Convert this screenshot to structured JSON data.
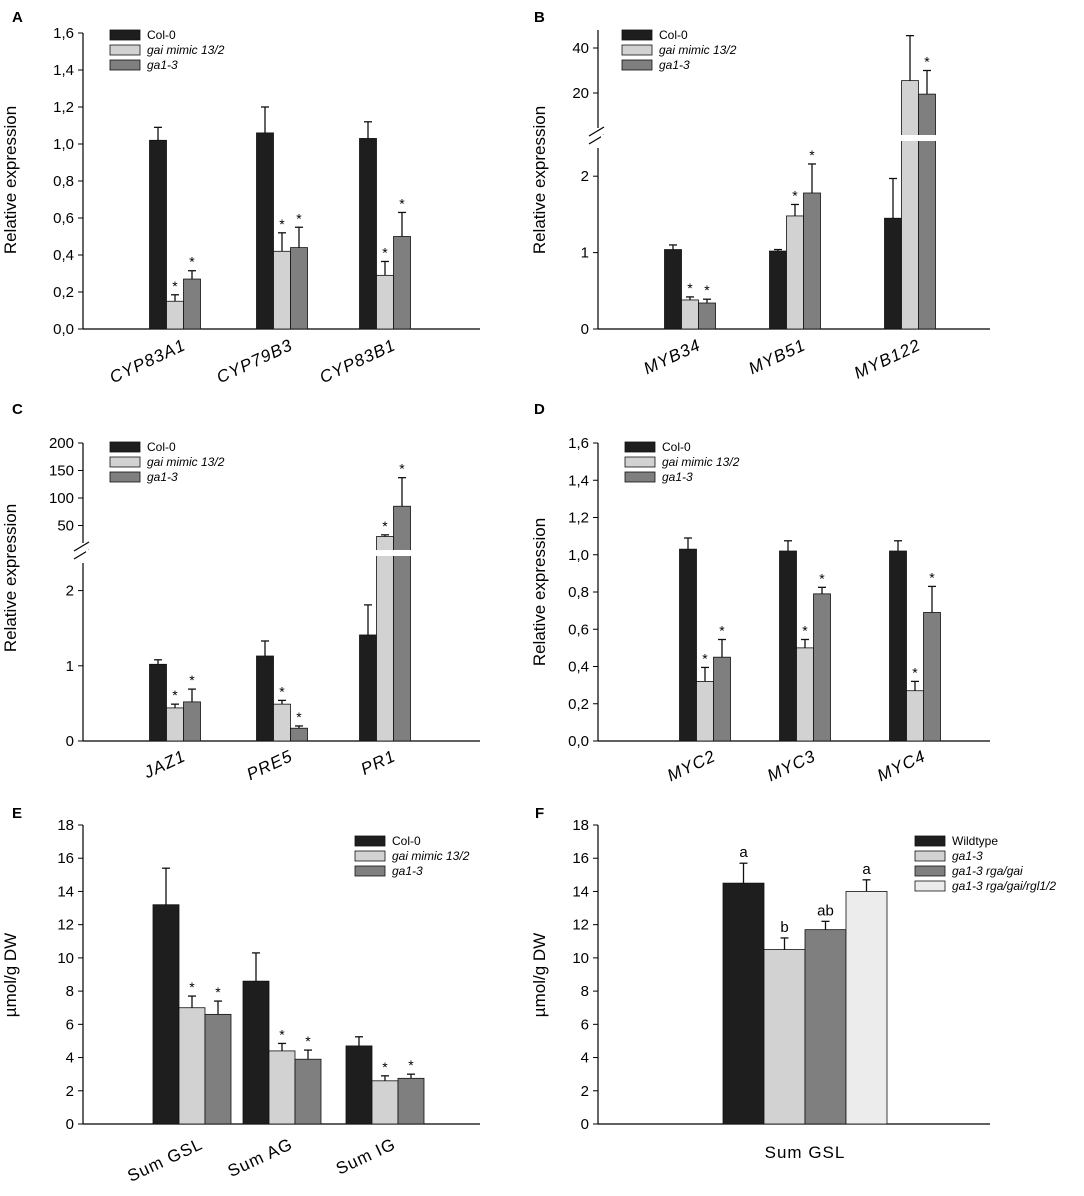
{
  "colors": {
    "col0": "#1e1e1e",
    "mimic": "#d2d2d2",
    "ga13": "#7f7f7f",
    "quad": "#ececec"
  },
  "chart_data": [
    {
      "id": "A",
      "panel_label": "A",
      "type": "bar",
      "ylabel": "Relative expression",
      "ylim": [
        0,
        1.6
      ],
      "yticks": [
        "0,0",
        "0,2",
        "0,4",
        "0,6",
        "0,8",
        "1,0",
        "1,2",
        "1,4",
        "1,6"
      ],
      "categories": [
        "CYP83A1",
        "CYP79B3",
        "CYP83B1"
      ],
      "category_italic": true,
      "category_rotated": true,
      "legend": {
        "position": "top-left",
        "entries": [
          "Col-0",
          "gai mimic 13/2",
          "ga1-3"
        ]
      },
      "series": [
        {
          "name": "Col-0",
          "color_key": "col0",
          "values": [
            1.02,
            1.06,
            1.03
          ],
          "errors": [
            0.07,
            0.14,
            0.09
          ],
          "marks": [
            "",
            "",
            ""
          ]
        },
        {
          "name": "gai mimic 13/2",
          "color_key": "mimic",
          "values": [
            0.15,
            0.42,
            0.29
          ],
          "errors": [
            0.035,
            0.1,
            0.075
          ],
          "marks": [
            "*",
            "*",
            "*"
          ]
        },
        {
          "name": "ga1-3",
          "color_key": "ga13",
          "values": [
            0.27,
            0.44,
            0.5
          ],
          "errors": [
            0.045,
            0.11,
            0.13
          ],
          "marks": [
            "*",
            "*",
            "*"
          ]
        }
      ]
    },
    {
      "id": "B",
      "panel_label": "B",
      "type": "bar",
      "ylabel": "Relative expression",
      "broken_axis": true,
      "ylim_lower": [
        0,
        2.5
      ],
      "ylim_upper": [
        0,
        48
      ],
      "yticks_lower": [
        "0",
        "1",
        "2"
      ],
      "yticks_upper": [
        "20",
        "40"
      ],
      "categories": [
        "MYB34",
        "MYB51",
        "MYB122"
      ],
      "category_italic": true,
      "category_rotated": true,
      "legend": {
        "position": "top-left",
        "entries": [
          "Col-0",
          "gai mimic 13/2",
          "ga1-3"
        ]
      },
      "series": [
        {
          "name": "Col-0",
          "color_key": "col0",
          "values": [
            1.04,
            1.02,
            1.45
          ],
          "errors": [
            0.06,
            0.02,
            0.52
          ],
          "marks": [
            "",
            "",
            ""
          ]
        },
        {
          "name": "gai mimic 13/2",
          "color_key": "mimic",
          "values": [
            0.38,
            1.48,
            25.5
          ],
          "errors": [
            0.04,
            0.15,
            20.0
          ],
          "marks": [
            "*",
            "*",
            ""
          ]
        },
        {
          "name": "ga1-3",
          "color_key": "ga13",
          "values": [
            0.34,
            1.78,
            19.5
          ],
          "errors": [
            0.05,
            0.38,
            10.5
          ],
          "marks": [
            "*",
            "*",
            "*"
          ]
        }
      ]
    },
    {
      "id": "C",
      "panel_label": "C",
      "type": "bar",
      "ylabel": "Relative expression",
      "broken_axis": true,
      "ylim_lower": [
        0,
        2.5
      ],
      "ylim_upper": [
        0,
        200
      ],
      "yticks_lower": [
        "0",
        "1",
        "2"
      ],
      "yticks_upper": [
        "50",
        "100",
        "150",
        "200"
      ],
      "categories": [
        "JAZ1",
        "PRE5",
        "PR1"
      ],
      "category_italic": true,
      "category_rotated": true,
      "legend": {
        "position": "top-left",
        "entries": [
          "Col-0",
          "gai mimic 13/2",
          "ga1-3"
        ]
      },
      "series": [
        {
          "name": "Col-0",
          "color_key": "col0",
          "values": [
            1.02,
            1.13,
            1.41
          ],
          "errors": [
            0.06,
            0.2,
            0.4
          ],
          "marks": [
            "",
            "",
            ""
          ]
        },
        {
          "name": "gai mimic 13/2",
          "color_key": "mimic",
          "values": [
            0.44,
            0.49,
            30
          ],
          "errors": [
            0.05,
            0.05,
            3
          ],
          "marks": [
            "*",
            "*",
            "*"
          ]
        },
        {
          "name": "ga1-3",
          "color_key": "ga13",
          "values": [
            0.52,
            0.17,
            85
          ],
          "errors": [
            0.17,
            0.03,
            52
          ],
          "marks": [
            "*",
            "*",
            "*"
          ]
        }
      ]
    },
    {
      "id": "D",
      "panel_label": "D",
      "type": "bar",
      "ylabel": "Relative expression",
      "ylim": [
        0,
        1.6
      ],
      "yticks": [
        "0,0",
        "0,2",
        "0,4",
        "0,6",
        "0,8",
        "1,0",
        "1,2",
        "1,4",
        "1,6"
      ],
      "categories": [
        "MYC2",
        "MYC3",
        "MYC4"
      ],
      "category_italic": true,
      "category_rotated": true,
      "legend": {
        "position": "top-left",
        "entries": [
          "Col-0",
          "gai mimic 13/2",
          "ga1-3"
        ]
      },
      "series": [
        {
          "name": "Col-0",
          "color_key": "col0",
          "values": [
            1.03,
            1.02,
            1.02
          ],
          "errors": [
            0.06,
            0.055,
            0.055
          ],
          "marks": [
            "",
            "",
            ""
          ]
        },
        {
          "name": "gai mimic 13/2",
          "color_key": "mimic",
          "values": [
            0.32,
            0.5,
            0.27
          ],
          "errors": [
            0.075,
            0.045,
            0.05
          ],
          "marks": [
            "*",
            "*",
            "*"
          ]
        },
        {
          "name": "ga1-3",
          "color_key": "ga13",
          "values": [
            0.45,
            0.79,
            0.69
          ],
          "errors": [
            0.095,
            0.035,
            0.14
          ],
          "marks": [
            "*",
            "*",
            "*"
          ]
        }
      ]
    },
    {
      "id": "E",
      "panel_label": "E",
      "type": "bar",
      "ylabel": "µmol/g DW",
      "ylim": [
        0,
        18
      ],
      "yticks": [
        "0",
        "2",
        "4",
        "6",
        "8",
        "10",
        "12",
        "14",
        "16",
        "18"
      ],
      "categories": [
        "Sum GSL",
        "Sum AG",
        "Sum IG"
      ],
      "category_italic": false,
      "category_rotated": true,
      "legend": {
        "position": "top-right",
        "entries": [
          "Col-0",
          "gai mimic 13/2",
          "ga1-3"
        ]
      },
      "series": [
        {
          "name": "Col-0",
          "color_key": "col0",
          "values": [
            13.2,
            8.6,
            4.7
          ],
          "errors": [
            2.2,
            1.7,
            0.55
          ],
          "marks": [
            "",
            "",
            ""
          ]
        },
        {
          "name": "gai mimic 13/2",
          "color_key": "mimic",
          "values": [
            7.0,
            4.4,
            2.6
          ],
          "errors": [
            0.7,
            0.45,
            0.3
          ],
          "marks": [
            "*",
            "*",
            "*"
          ]
        },
        {
          "name": "ga1-3",
          "color_key": "ga13",
          "values": [
            6.6,
            3.9,
            2.75
          ],
          "errors": [
            0.8,
            0.55,
            0.25
          ],
          "marks": [
            "*",
            "*",
            "*"
          ]
        }
      ]
    },
    {
      "id": "F",
      "panel_label": "F",
      "type": "bar",
      "ylabel": "µmol/g DW",
      "ylim": [
        0,
        18
      ],
      "yticks": [
        "0",
        "2",
        "4",
        "6",
        "8",
        "10",
        "12",
        "14",
        "16",
        "18"
      ],
      "categories": [
        "Sum GSL"
      ],
      "category_italic": false,
      "category_rotated": false,
      "legend": {
        "position": "top-right",
        "entries": [
          "Wildtype",
          "ga1-3",
          "ga1-3 rga/gai",
          "ga1-3 rga/gai/rgl1/2"
        ]
      },
      "series": [
        {
          "name": "Wildtype",
          "color_key": "col0",
          "values": [
            14.5
          ],
          "errors": [
            1.2
          ],
          "marks": [
            "a"
          ]
        },
        {
          "name": "ga1-3",
          "color_key": "mimic",
          "values": [
            10.5
          ],
          "errors": [
            0.7
          ],
          "marks": [
            "b"
          ]
        },
        {
          "name": "ga1-3 rga/gai",
          "color_key": "ga13",
          "values": [
            11.7
          ],
          "errors": [
            0.5
          ],
          "marks": [
            "ab"
          ]
        },
        {
          "name": "ga1-3 rga/gai/rgl1/2",
          "color_key": "quad",
          "values": [
            14.0
          ],
          "errors": [
            0.7
          ],
          "marks": [
            "a"
          ]
        }
      ]
    }
  ]
}
